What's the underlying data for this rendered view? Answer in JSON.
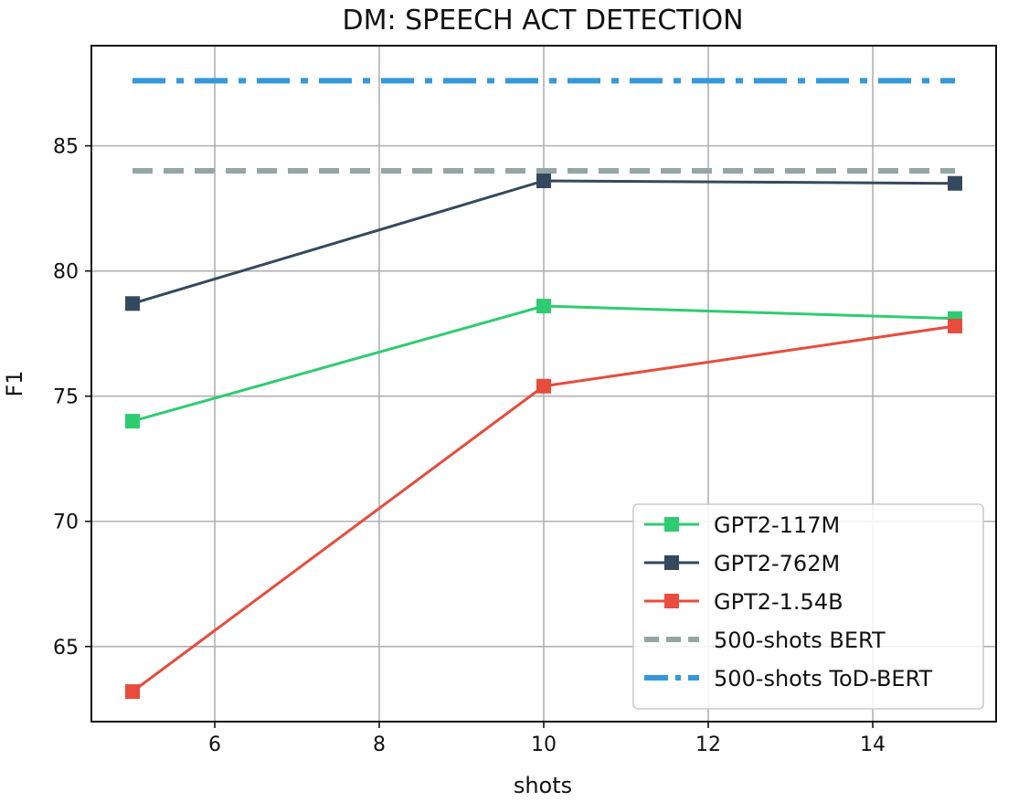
{
  "chart_data": {
    "type": "line",
    "title": "DM: SPEECH ACT DETECTION",
    "xlabel": "shots",
    "ylabel": "F1",
    "xlim": [
      4.5,
      15.5
    ],
    "ylim": [
      62,
      89
    ],
    "xticks": [
      6,
      8,
      10,
      12,
      14
    ],
    "yticks": [
      65,
      70,
      75,
      80,
      85
    ],
    "grid": true,
    "legend_position": "lower-right",
    "x": [
      5,
      10,
      15
    ],
    "series": [
      {
        "name": "GPT2-117M",
        "values": [
          74.0,
          78.6,
          78.1
        ],
        "color": "#2ecc71",
        "style": "solid",
        "marker": "square"
      },
      {
        "name": "GPT2-762M",
        "values": [
          78.7,
          83.6,
          83.5
        ],
        "color": "#34495e",
        "style": "solid",
        "marker": "square"
      },
      {
        "name": "GPT2-1.54B",
        "values": [
          63.2,
          75.4,
          77.8
        ],
        "color": "#e74c3c",
        "style": "solid",
        "marker": "square"
      },
      {
        "name": "500-shots BERT",
        "values": [
          84.0,
          84.0,
          84.0
        ],
        "color": "#95a5a6",
        "style": "dashed",
        "marker": "none"
      },
      {
        "name": "500-shots ToD-BERT",
        "values": [
          87.6,
          87.6,
          87.6
        ],
        "color": "#3498db",
        "style": "dashdot",
        "marker": "none"
      }
    ]
  }
}
